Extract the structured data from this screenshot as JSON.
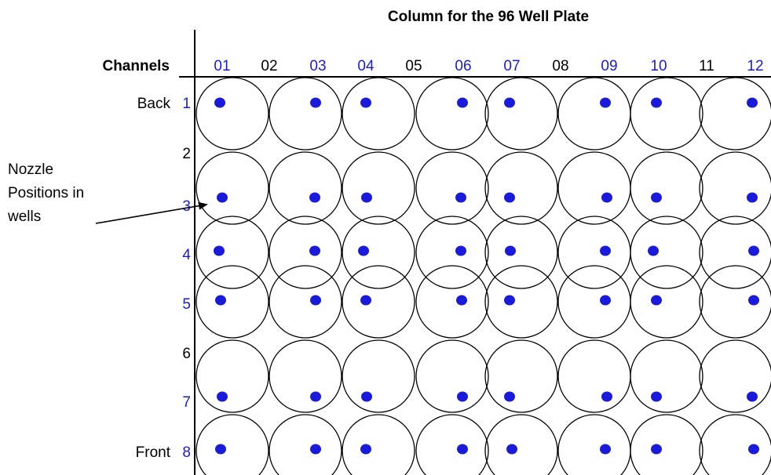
{
  "header": {
    "title": "Column for the 96 Well Plate",
    "channels_label": "Channels"
  },
  "colors": {
    "active": "#1a1adc",
    "inactive": "#000000",
    "dot": "#1a1adc",
    "line": "#000000"
  },
  "columns": [
    {
      "label": "01",
      "active": true
    },
    {
      "label": "02",
      "active": false
    },
    {
      "label": "03",
      "active": true
    },
    {
      "label": "04",
      "active": true
    },
    {
      "label": "05",
      "active": false
    },
    {
      "label": "06",
      "active": true
    },
    {
      "label": "07",
      "active": true
    },
    {
      "label": "08",
      "active": false
    },
    {
      "label": "09",
      "active": true
    },
    {
      "label": "10",
      "active": true
    },
    {
      "label": "11",
      "active": false
    },
    {
      "label": "12",
      "active": true
    }
  ],
  "channels": [
    {
      "label": "1",
      "side": "Back",
      "active": true
    },
    {
      "label": "2",
      "side": "",
      "active": false
    },
    {
      "label": "3",
      "side": "",
      "active": true
    },
    {
      "label": "4",
      "side": "",
      "active": true
    },
    {
      "label": "5",
      "side": "",
      "active": true
    },
    {
      "label": "6",
      "side": "",
      "active": false
    },
    {
      "label": "7",
      "side": "",
      "active": true
    },
    {
      "label": "8",
      "side": "Front",
      "active": true
    }
  ],
  "annotation": {
    "lines": [
      "Nozzle",
      "Positions in",
      "wells"
    ]
  }
}
